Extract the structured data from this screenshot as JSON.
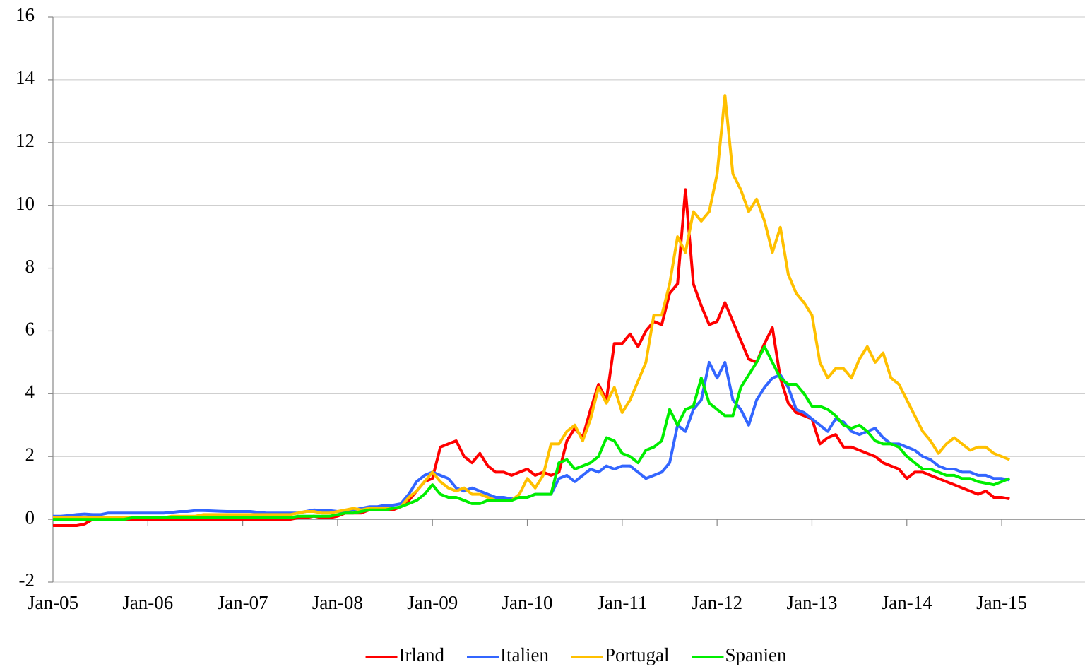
{
  "chart_data": {
    "type": "line",
    "categories": [
      "Jan-05",
      null,
      null,
      null,
      null,
      null,
      null,
      null,
      null,
      null,
      null,
      null,
      "Jan-06",
      null,
      null,
      null,
      null,
      null,
      null,
      null,
      null,
      null,
      null,
      null,
      "Jan-07",
      null,
      null,
      null,
      null,
      null,
      null,
      null,
      null,
      null,
      null,
      null,
      "Jan-08",
      null,
      null,
      null,
      null,
      null,
      null,
      null,
      null,
      null,
      null,
      null,
      "Jan-09",
      null,
      null,
      null,
      null,
      null,
      null,
      null,
      null,
      null,
      null,
      null,
      "Jan-10",
      null,
      null,
      null,
      null,
      null,
      null,
      null,
      null,
      null,
      null,
      null,
      "Jan-11",
      null,
      null,
      null,
      null,
      null,
      null,
      null,
      null,
      null,
      null,
      null,
      "Jan-12",
      null,
      null,
      null,
      null,
      null,
      null,
      null,
      null,
      null,
      null,
      null,
      "Jan-13",
      null,
      null,
      null,
      null,
      null,
      null,
      null,
      null,
      null,
      null,
      null,
      "Jan-14",
      null,
      null,
      null,
      null,
      null,
      null,
      null,
      null,
      null,
      null,
      null,
      "Jan-15",
      null,
      null,
      null,
      null,
      null,
      null,
      null,
      null,
      null,
      null
    ],
    "series": [
      {
        "name": "Irland",
        "color": "#ff0000",
        "values": [
          -0.2,
          -0.2,
          -0.2,
          -0.2,
          -0.15,
          0,
          0,
          0,
          0,
          0,
          0,
          0,
          0,
          0,
          0,
          0,
          0,
          0,
          0,
          0,
          0,
          0,
          0,
          0,
          0,
          0,
          0,
          0,
          0,
          0,
          0,
          0.05,
          0.05,
          0.1,
          0.05,
          0.05,
          0.1,
          0.2,
          0.2,
          0.2,
          0.3,
          0.3,
          0.3,
          0.3,
          0.4,
          0.6,
          0.9,
          1.2,
          1.3,
          2.3,
          2.4,
          2.5,
          2.0,
          1.8,
          2.1,
          1.7,
          1.5,
          1.5,
          1.4,
          1.5,
          1.6,
          1.4,
          1.5,
          1.4,
          1.5,
          2.5,
          2.9,
          2.6,
          3.5,
          4.3,
          3.8,
          5.6,
          5.6,
          5.9,
          5.5,
          6.0,
          6.3,
          6.2,
          7.2,
          7.5,
          10.5,
          7.5,
          6.8,
          6.2,
          6.3,
          6.9,
          6.3,
          5.7,
          5.1,
          5.0,
          5.6,
          6.1,
          4.5,
          3.7,
          3.4,
          3.3,
          3.2,
          2.4,
          2.6,
          2.7,
          2.3,
          2.3,
          2.2,
          2.1,
          2.0,
          1.8,
          1.7,
          1.6,
          1.3,
          1.5,
          1.5,
          1.4,
          1.3,
          1.2,
          1.1,
          1.0,
          0.9,
          0.8,
          0.9,
          0.7,
          0.7,
          0.65,
          null,
          null,
          null,
          null,
          null,
          null,
          null,
          null,
          null
        ]
      },
      {
        "name": "Italien",
        "color": "#3366ff",
        "values": [
          0.1,
          0.1,
          0.12,
          0.15,
          0.17,
          0.15,
          0.15,
          0.2,
          0.2,
          0.2,
          0.2,
          0.2,
          0.2,
          0.2,
          0.2,
          0.22,
          0.25,
          0.25,
          0.28,
          0.28,
          0.27,
          0.26,
          0.25,
          0.25,
          0.25,
          0.25,
          0.22,
          0.2,
          0.2,
          0.2,
          0.2,
          0.2,
          0.25,
          0.3,
          0.28,
          0.28,
          0.25,
          0.25,
          0.3,
          0.35,
          0.4,
          0.4,
          0.45,
          0.45,
          0.5,
          0.8,
          1.2,
          1.4,
          1.5,
          1.4,
          1.3,
          1.0,
          0.9,
          1.0,
          0.9,
          0.8,
          0.7,
          0.7,
          0.65,
          0.7,
          0.7,
          0.8,
          0.8,
          0.8,
          1.3,
          1.4,
          1.2,
          1.4,
          1.6,
          1.5,
          1.7,
          1.6,
          1.7,
          1.7,
          1.5,
          1.3,
          1.4,
          1.5,
          1.8,
          3.0,
          2.8,
          3.5,
          3.8,
          5.0,
          4.5,
          5.0,
          3.8,
          3.5,
          3.0,
          3.8,
          4.2,
          4.5,
          4.6,
          4.2,
          3.5,
          3.4,
          3.2,
          3.0,
          2.8,
          3.2,
          3.1,
          2.8,
          2.7,
          2.8,
          2.9,
          2.6,
          2.4,
          2.4,
          2.3,
          2.2,
          2.0,
          1.9,
          1.7,
          1.6,
          1.6,
          1.5,
          1.5,
          1.4,
          1.4,
          1.3,
          1.3,
          1.25,
          null,
          null,
          null,
          null,
          null,
          null,
          null,
          null,
          null
        ]
      },
      {
        "name": "Portugal",
        "color": "#ffc000",
        "values": [
          0.05,
          0.05,
          0.05,
          0.05,
          0.05,
          0.05,
          0.05,
          0.05,
          0.05,
          0.05,
          0.05,
          0.05,
          0.05,
          0.05,
          0.05,
          0.1,
          0.1,
          0.1,
          0.1,
          0.15,
          0.15,
          0.15,
          0.15,
          0.15,
          0.15,
          0.15,
          0.15,
          0.15,
          0.15,
          0.15,
          0.15,
          0.2,
          0.25,
          0.25,
          0.2,
          0.2,
          0.25,
          0.3,
          0.35,
          0.3,
          0.35,
          0.35,
          0.35,
          0.35,
          0.4,
          0.7,
          0.9,
          1.2,
          1.5,
          1.2,
          1.0,
          0.9,
          1.0,
          0.8,
          0.8,
          0.7,
          0.6,
          0.6,
          0.6,
          0.8,
          1.3,
          1.0,
          1.4,
          2.4,
          2.4,
          2.8,
          3.0,
          2.5,
          3.2,
          4.2,
          3.7,
          4.2,
          3.4,
          3.8,
          4.4,
          5.0,
          6.5,
          6.5,
          7.5,
          9.0,
          8.5,
          9.8,
          9.5,
          9.8,
          11.0,
          13.5,
          11.0,
          10.5,
          9.8,
          10.2,
          9.5,
          8.5,
          9.3,
          7.8,
          7.2,
          6.9,
          6.5,
          5.0,
          4.5,
          4.8,
          4.8,
          4.5,
          5.1,
          5.5,
          5.0,
          5.3,
          4.5,
          4.3,
          3.8,
          3.3,
          2.8,
          2.5,
          2.1,
          2.4,
          2.6,
          2.4,
          2.2,
          2.3,
          2.3,
          2.1,
          2.0,
          1.9,
          null,
          null,
          null,
          null,
          null,
          null,
          null,
          null,
          null
        ]
      },
      {
        "name": "Spanien",
        "color": "#00ee00",
        "values": [
          0,
          0,
          0,
          0,
          0,
          0,
          0,
          0,
          0,
          0,
          0.05,
          0.05,
          0.05,
          0.05,
          0.05,
          0.05,
          0.05,
          0.05,
          0.05,
          0.05,
          0.05,
          0.05,
          0.05,
          0.05,
          0.05,
          0.05,
          0.05,
          0.05,
          0.05,
          0.05,
          0.05,
          0.1,
          0.1,
          0.1,
          0.1,
          0.1,
          0.15,
          0.2,
          0.2,
          0.25,
          0.3,
          0.3,
          0.3,
          0.35,
          0.4,
          0.5,
          0.6,
          0.8,
          1.1,
          0.8,
          0.7,
          0.7,
          0.6,
          0.5,
          0.5,
          0.6,
          0.6,
          0.6,
          0.6,
          0.7,
          0.7,
          0.8,
          0.8,
          0.8,
          1.8,
          1.9,
          1.6,
          1.7,
          1.8,
          2.0,
          2.6,
          2.5,
          2.1,
          2.0,
          1.8,
          2.2,
          2.3,
          2.5,
          3.5,
          3.0,
          3.5,
          3.6,
          4.5,
          3.7,
          3.5,
          3.3,
          3.3,
          4.2,
          4.6,
          5.0,
          5.5,
          5.0,
          4.5,
          4.3,
          4.3,
          4.0,
          3.6,
          3.6,
          3.5,
          3.3,
          3.0,
          2.9,
          3.0,
          2.8,
          2.5,
          2.4,
          2.4,
          2.3,
          2.0,
          1.8,
          1.6,
          1.6,
          1.5,
          1.4,
          1.4,
          1.3,
          1.3,
          1.2,
          1.15,
          1.1,
          1.2,
          1.3,
          null,
          null,
          null,
          null,
          null,
          null,
          null,
          null,
          null
        ]
      }
    ],
    "ylim": [
      -2,
      16
    ],
    "yticks": [
      -2,
      0,
      2,
      4,
      6,
      8,
      10,
      12,
      14,
      16
    ],
    "grid": true,
    "legend": "bottom"
  }
}
